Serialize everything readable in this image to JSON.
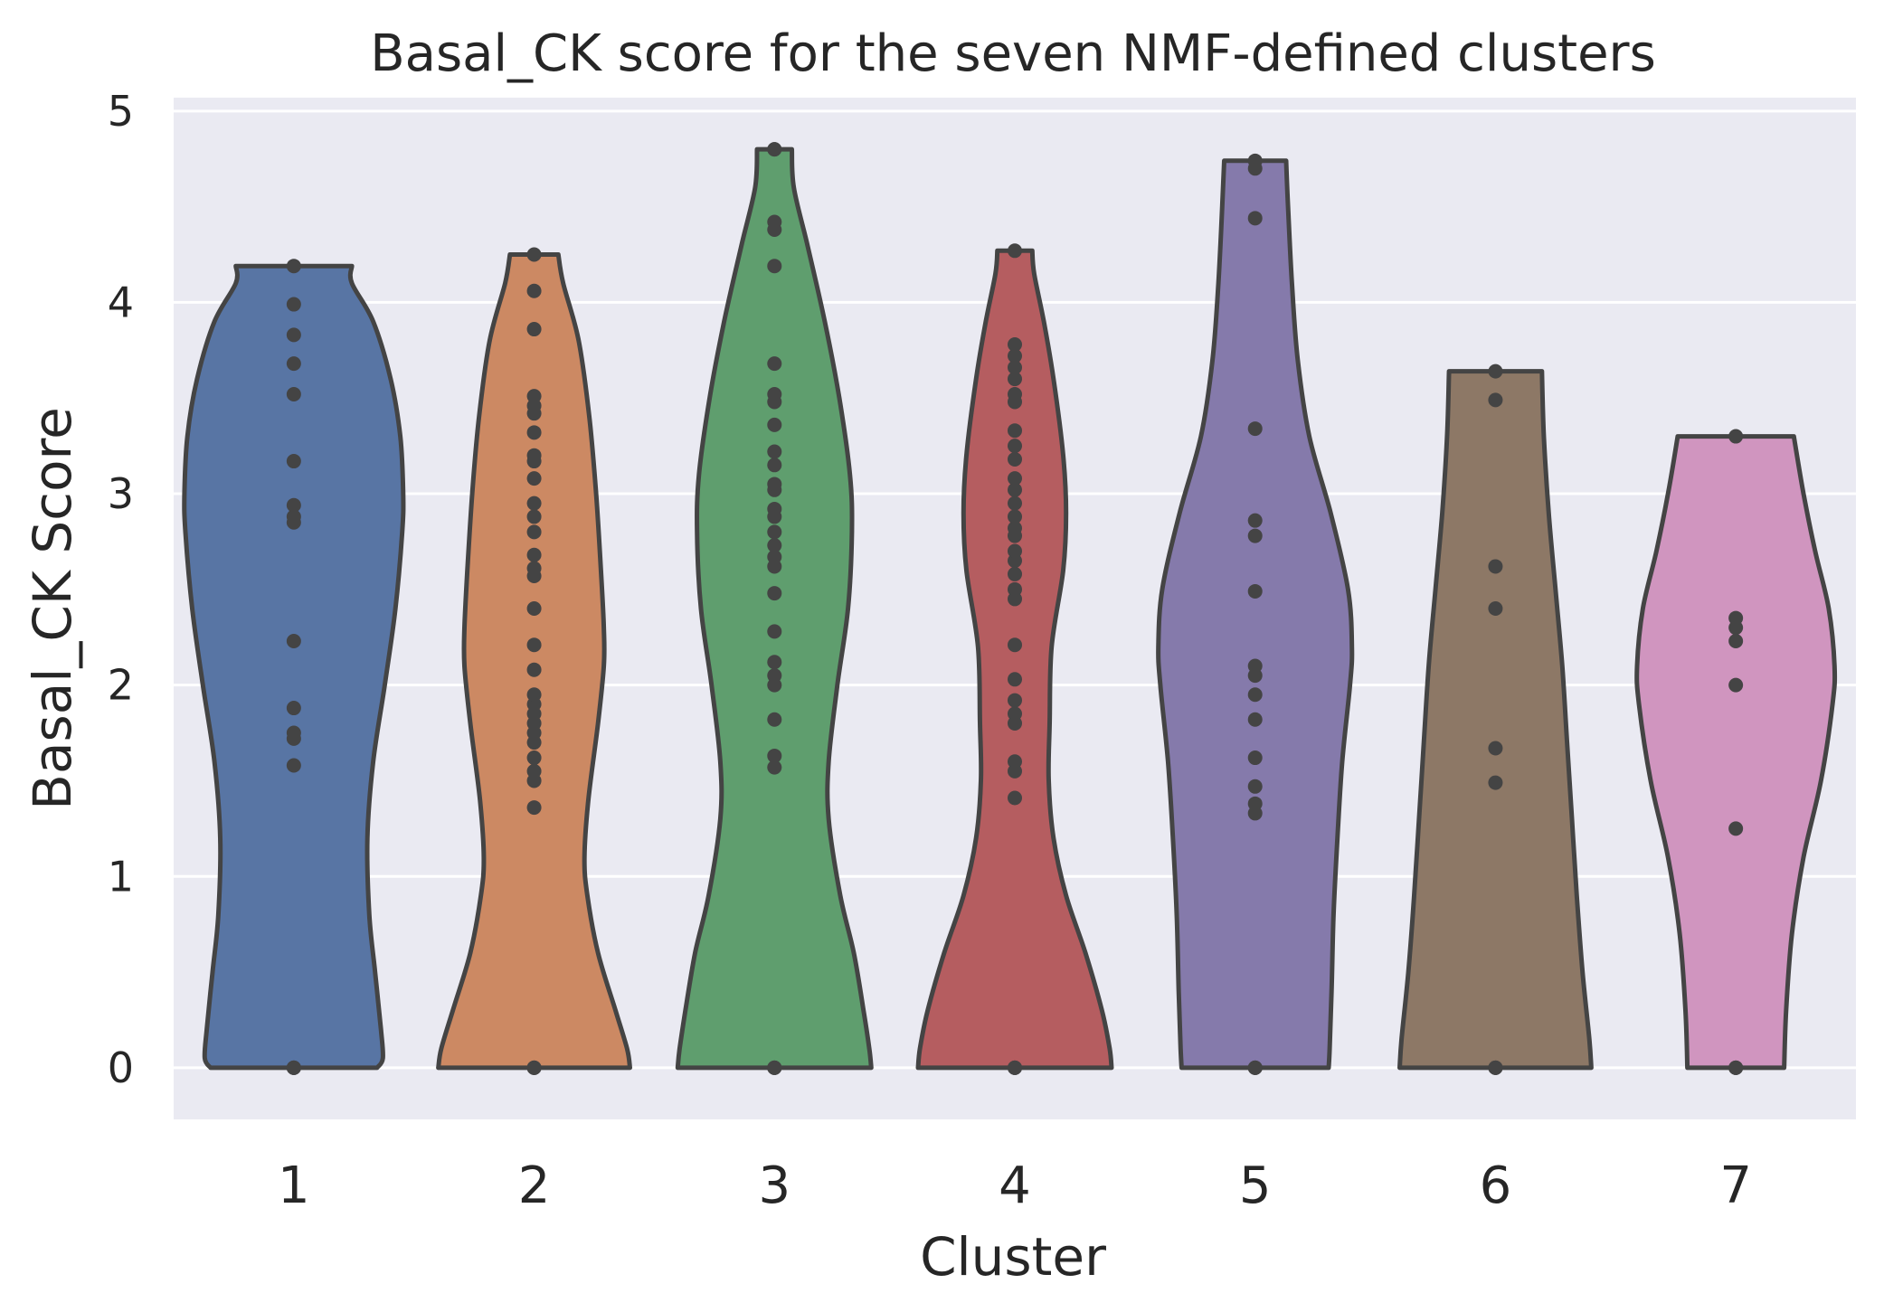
{
  "chart_data": {
    "type": "violin",
    "title": "Basal_CK score for the seven NMF-defined clusters",
    "xlabel": "Cluster",
    "ylabel": "Basal_CK Score",
    "categories": [
      "1",
      "2",
      "3",
      "4",
      "5",
      "6",
      "7"
    ],
    "ylim": [
      -0.27,
      5.07
    ],
    "yticks": [
      0,
      1,
      2,
      3,
      4,
      5
    ],
    "grid": true,
    "legend": "none",
    "background": "#eaeaf2",
    "series": [
      {
        "category": "1",
        "color": "#5875a4",
        "min": 0,
        "max": 4.19,
        "density": [
          [
            0,
            0.86
          ],
          [
            0.05,
            0.92
          ],
          [
            0.2,
            0.9
          ],
          [
            0.5,
            0.84
          ],
          [
            0.8,
            0.78
          ],
          [
            1.2,
            0.76
          ],
          [
            1.6,
            0.82
          ],
          [
            2.0,
            0.94
          ],
          [
            2.4,
            1.05
          ],
          [
            2.8,
            1.12
          ],
          [
            3.0,
            1.13
          ],
          [
            3.3,
            1.1
          ],
          [
            3.6,
            1.0
          ],
          [
            3.9,
            0.82
          ],
          [
            4.1,
            0.6
          ],
          [
            4.19,
            0.6
          ]
        ],
        "points": [
          0,
          0,
          0,
          1.58,
          1.72,
          1.75,
          1.88,
          2.23,
          2.85,
          2.88,
          2.94,
          3.17,
          3.52,
          3.68,
          3.83,
          3.99,
          4.19
        ]
      },
      {
        "category": "2",
        "color": "#cc8963",
        "min": 0,
        "max": 4.25,
        "density": [
          [
            0,
            0.99
          ],
          [
            0.1,
            0.96
          ],
          [
            0.3,
            0.84
          ],
          [
            0.6,
            0.66
          ],
          [
            0.9,
            0.55
          ],
          [
            1.1,
            0.52
          ],
          [
            1.4,
            0.56
          ],
          [
            1.8,
            0.66
          ],
          [
            2.1,
            0.72
          ],
          [
            2.3,
            0.72
          ],
          [
            2.6,
            0.69
          ],
          [
            3.0,
            0.64
          ],
          [
            3.4,
            0.57
          ],
          [
            3.8,
            0.46
          ],
          [
            4.1,
            0.3
          ],
          [
            4.25,
            0.25
          ]
        ],
        "points": [
          0,
          0,
          0,
          1.36,
          1.5,
          1.55,
          1.62,
          1.7,
          1.75,
          1.8,
          1.85,
          1.9,
          1.95,
          2.08,
          2.21,
          2.4,
          2.57,
          2.61,
          2.68,
          2.8,
          2.88,
          2.95,
          3.08,
          3.17,
          3.2,
          3.32,
          3.42,
          3.46,
          3.51,
          3.86,
          4.06,
          4.25
        ]
      },
      {
        "category": "3",
        "color": "#5f9e6e",
        "min": 0,
        "max": 4.8,
        "density": [
          [
            0,
            1.0
          ],
          [
            0.1,
            0.98
          ],
          [
            0.3,
            0.92
          ],
          [
            0.6,
            0.82
          ],
          [
            0.9,
            0.68
          ],
          [
            1.3,
            0.56
          ],
          [
            1.6,
            0.56
          ],
          [
            2.0,
            0.65
          ],
          [
            2.4,
            0.76
          ],
          [
            2.8,
            0.8
          ],
          [
            3.1,
            0.78
          ],
          [
            3.5,
            0.67
          ],
          [
            3.9,
            0.52
          ],
          [
            4.3,
            0.34
          ],
          [
            4.6,
            0.2
          ],
          [
            4.8,
            0.18
          ]
        ],
        "points": [
          0,
          0,
          0,
          1.57,
          1.63,
          1.82,
          2.0,
          2.05,
          2.12,
          2.28,
          2.48,
          2.62,
          2.67,
          2.73,
          2.8,
          2.88,
          2.92,
          3.02,
          3.05,
          3.15,
          3.22,
          3.36,
          3.48,
          3.52,
          3.68,
          4.19,
          4.38,
          4.42,
          4.8,
          4.8
        ]
      },
      {
        "category": "4",
        "color": "#b55d60",
        "min": 0,
        "max": 4.27,
        "density": [
          [
            0,
            1.0
          ],
          [
            0.1,
            0.98
          ],
          [
            0.3,
            0.9
          ],
          [
            0.6,
            0.73
          ],
          [
            0.9,
            0.53
          ],
          [
            1.2,
            0.4
          ],
          [
            1.5,
            0.35
          ],
          [
            1.8,
            0.36
          ],
          [
            2.2,
            0.38
          ],
          [
            2.6,
            0.5
          ],
          [
            2.9,
            0.53
          ],
          [
            3.2,
            0.5
          ],
          [
            3.6,
            0.4
          ],
          [
            3.9,
            0.3
          ],
          [
            4.15,
            0.2
          ],
          [
            4.27,
            0.18
          ]
        ],
        "points": [
          0,
          0,
          0,
          1.41,
          1.55,
          1.6,
          1.8,
          1.85,
          1.92,
          2.03,
          2.21,
          2.45,
          2.5,
          2.58,
          2.65,
          2.7,
          2.78,
          2.82,
          2.88,
          2.95,
          3.02,
          3.08,
          3.18,
          3.25,
          3.33,
          3.48,
          3.52,
          3.6,
          3.66,
          3.72,
          3.78,
          4.27
        ]
      },
      {
        "category": "5",
        "color": "#857aab",
        "min": 0,
        "max": 4.74,
        "density": [
          [
            0,
            0.76
          ],
          [
            0.1,
            0.77
          ],
          [
            0.4,
            0.79
          ],
          [
            0.8,
            0.81
          ],
          [
            1.2,
            0.85
          ],
          [
            1.6,
            0.9
          ],
          [
            2.0,
            0.98
          ],
          [
            2.2,
            1.0
          ],
          [
            2.5,
            0.96
          ],
          [
            2.9,
            0.78
          ],
          [
            3.3,
            0.56
          ],
          [
            3.7,
            0.44
          ],
          [
            4.1,
            0.38
          ],
          [
            4.5,
            0.34
          ],
          [
            4.74,
            0.32
          ]
        ],
        "points": [
          0,
          0,
          0,
          1.33,
          1.38,
          1.47,
          1.62,
          1.82,
          1.95,
          2.05,
          2.1,
          2.49,
          2.78,
          2.86,
          3.34,
          4.44,
          4.7,
          4.74
        ]
      },
      {
        "category": "6",
        "color": "#8d7866",
        "min": 0,
        "max": 3.64,
        "density": [
          [
            0,
            0.99
          ],
          [
            0.15,
            0.97
          ],
          [
            0.5,
            0.9
          ],
          [
            0.9,
            0.84
          ],
          [
            1.3,
            0.79
          ],
          [
            1.7,
            0.74
          ],
          [
            2.1,
            0.69
          ],
          [
            2.5,
            0.62
          ],
          [
            2.9,
            0.55
          ],
          [
            3.3,
            0.5
          ],
          [
            3.64,
            0.48
          ]
        ],
        "points": [
          0,
          0,
          0,
          1.49,
          1.67,
          2.4,
          2.62,
          3.49,
          3.64
        ]
      },
      {
        "category": "7",
        "color": "#d095bf",
        "min": 0,
        "max": 3.3,
        "density": [
          [
            0,
            0.5
          ],
          [
            0.3,
            0.52
          ],
          [
            0.7,
            0.58
          ],
          [
            1.1,
            0.7
          ],
          [
            1.5,
            0.88
          ],
          [
            1.9,
            1.0
          ],
          [
            2.1,
            1.02
          ],
          [
            2.4,
            0.96
          ],
          [
            2.7,
            0.82
          ],
          [
            3.0,
            0.7
          ],
          [
            3.3,
            0.6
          ]
        ],
        "points": [
          0,
          0,
          0,
          1.25,
          2.0,
          2.23,
          2.3,
          2.35,
          3.3
        ]
      }
    ]
  }
}
